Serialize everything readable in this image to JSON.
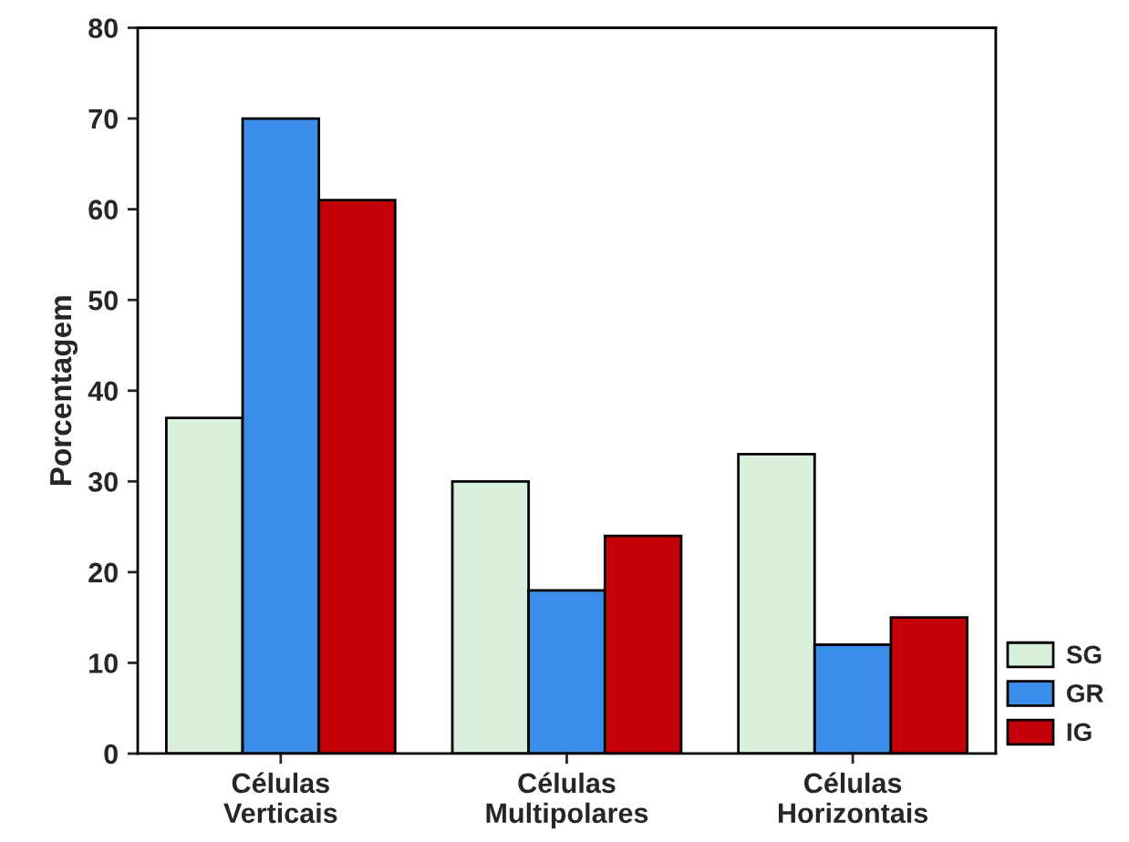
{
  "chart_data": {
    "type": "bar",
    "ylabel": "Porcentagem",
    "categories": [
      "Células\nVerticais",
      "Células\nMultipolares",
      "Células\nHorizontais"
    ],
    "series": [
      {
        "name": "SG",
        "color": "#d8f0dc",
        "values": [
          37,
          30,
          33
        ]
      },
      {
        "name": "GR",
        "color": "#3a8de8",
        "values": [
          70,
          18,
          12
        ]
      },
      {
        "name": "IG",
        "color": "#c40008",
        "values": [
          61,
          24,
          15
        ]
      }
    ],
    "ylim": [
      0,
      80
    ],
    "yticks": [
      0,
      10,
      20,
      30,
      40,
      50,
      60,
      70,
      80
    ],
    "grid": false,
    "legend": "bottom right"
  }
}
